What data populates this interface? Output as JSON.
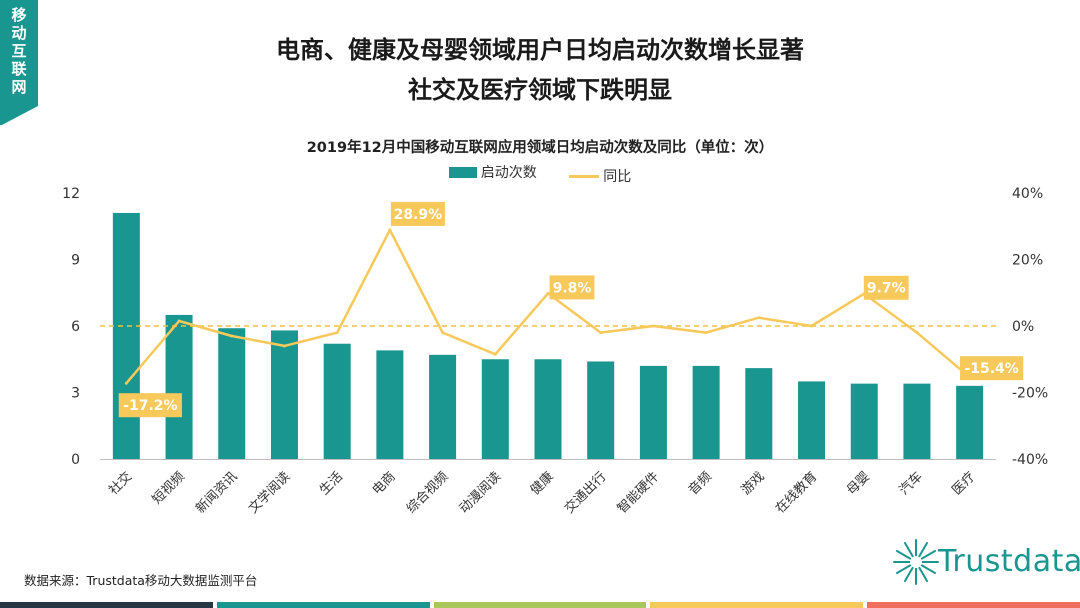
{
  "corner_tab": {
    "label": [
      "移",
      "动",
      "互",
      "联",
      "网"
    ]
  },
  "headline": {
    "line1": "电商、健康及母婴领域用户日均启动次数增长显著",
    "line2": "社交及医疗领域下跌明显"
  },
  "source": "数据来源：Trustdata移动大数据监测平台",
  "logo": {
    "text": "Trustdata",
    "icon": "starburst-icon"
  },
  "colors": {
    "bar": "#1a9690",
    "line": "#f7c85a",
    "label_bg": "#f7c85a",
    "zero_line": "#f0c040",
    "stripes": [
      "#263744",
      "#1a9690",
      "#a9c75a",
      "#f7c85a",
      "#f06f5c"
    ]
  },
  "chart_data": {
    "type": "bar",
    "title": "2019年12月中国移动互联网应用领域日均启动次数及同比（单位：次）",
    "categories": [
      "社交",
      "短视频",
      "新闻资讯",
      "文学阅读",
      "生活",
      "电商",
      "综合视频",
      "动漫阅读",
      "健康",
      "交通出行",
      "智能硬件",
      "音频",
      "游戏",
      "在线教育",
      "母婴",
      "汽车",
      "医疗"
    ],
    "series": [
      {
        "name": "启动次数",
        "kind": "bar",
        "axis": "left",
        "values": [
          11.1,
          6.5,
          5.9,
          5.8,
          5.2,
          4.9,
          4.7,
          4.5,
          4.5,
          4.4,
          4.2,
          4.2,
          4.1,
          3.5,
          3.4,
          3.4,
          3.3
        ]
      },
      {
        "name": "同比",
        "kind": "line",
        "axis": "right",
        "unit": "%",
        "values": [
          -17.2,
          1.5,
          -3.0,
          -6.0,
          -2.0,
          28.9,
          -2.0,
          -8.5,
          9.8,
          -2.0,
          0.0,
          -2.0,
          2.5,
          0.0,
          9.7,
          -2.0,
          -15.4
        ]
      }
    ],
    "y_left": {
      "min": 0,
      "max": 12,
      "ticks": [
        "0",
        "3",
        "6",
        "9",
        "12"
      ]
    },
    "y_right": {
      "min": -40,
      "max": 40,
      "ticks": [
        "-40%",
        "-20%",
        "0%",
        "20%",
        "40%"
      ]
    },
    "annotations": [
      {
        "index": 0,
        "text": "-17.2%"
      },
      {
        "index": 5,
        "text": "28.9%"
      },
      {
        "index": 8,
        "text": "9.8%"
      },
      {
        "index": 14,
        "text": "9.7%"
      },
      {
        "index": 16,
        "text": "-15.4%"
      }
    ],
    "reference_line": {
      "axis": "right",
      "value": 0,
      "style": "dashed"
    },
    "legend": [
      "启动次数",
      "同比"
    ]
  }
}
